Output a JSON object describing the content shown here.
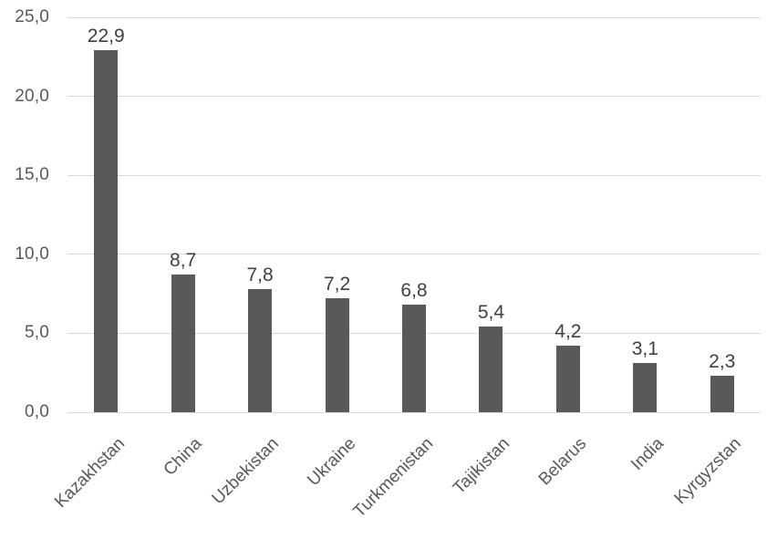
{
  "chart_data": {
    "type": "bar",
    "title": "",
    "xlabel": "",
    "ylabel": "",
    "categories": [
      "Kazakhstan",
      "China",
      "Uzbekistan",
      "Ukraine",
      "Turkmenistan",
      "Tajikistan",
      "Belarus",
      "India",
      "Kyrgyzstan"
    ],
    "values": [
      22.9,
      8.7,
      7.8,
      7.2,
      6.8,
      5.4,
      4.2,
      3.1,
      2.3
    ],
    "data_labels": [
      "22,9",
      "8,7",
      "7,8",
      "7,2",
      "6,8",
      "5,4",
      "4,2",
      "3,1",
      "2,3"
    ],
    "y_tick_labels": [
      "0,0",
      "5,0",
      "10,0",
      "15,0",
      "20,0",
      "25,0"
    ],
    "y_tick_values": [
      0,
      5,
      10,
      15,
      20,
      25
    ],
    "ylim": [
      0,
      25
    ],
    "decimal_separator": ",",
    "grid": true,
    "legend": "none",
    "category_label_rotation_deg": 45,
    "colors": {
      "bar": "#595959",
      "gridline": "#d9d9d9",
      "axis_line": "#d9d9d9",
      "tick_label": "#595959",
      "data_label": "#404040",
      "background": "#ffffff"
    }
  }
}
